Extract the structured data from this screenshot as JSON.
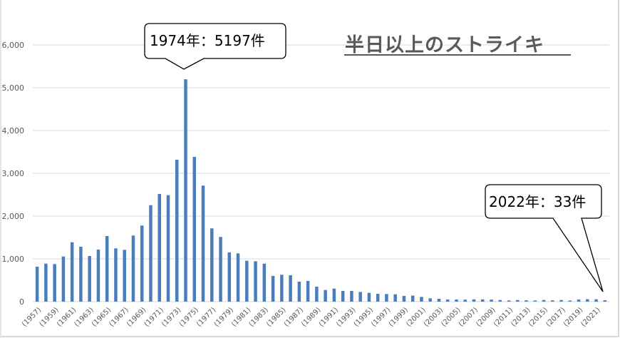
{
  "chart_data": {
    "type": "bar",
    "title": "半日以上のストライキ",
    "xlabel": "",
    "ylabel": "",
    "ylim": [
      0,
      6000
    ],
    "yticks": [
      "0",
      "1,000",
      "2,000",
      "3,000",
      "4,000",
      "5,000",
      "6,000"
    ],
    "grid": true,
    "legend": "none",
    "bar_color": "#4a7ebb",
    "categories": [
      1957,
      1958,
      1959,
      1960,
      1961,
      1962,
      1963,
      1964,
      1965,
      1966,
      1967,
      1968,
      1969,
      1970,
      1971,
      1972,
      1973,
      1974,
      1975,
      1976,
      1977,
      1978,
      1979,
      1980,
      1981,
      1982,
      1983,
      1984,
      1985,
      1986,
      1987,
      1988,
      1989,
      1990,
      1991,
      1992,
      1993,
      1994,
      1995,
      1996,
      1997,
      1998,
      1999,
      2000,
      2001,
      2002,
      2003,
      2004,
      2005,
      2006,
      2007,
      2008,
      2009,
      2010,
      2011,
      2012,
      2013,
      2014,
      2015,
      2016,
      2017,
      2018,
      2019,
      2020,
      2021,
      2022
    ],
    "x_tick_labels": [
      "(1957)",
      "(1959)",
      "(1961)",
      "(1963)",
      "(1965)",
      "(1967)",
      "(1969)",
      "(1971)",
      "(1973)",
      "(1975)",
      "(1977)",
      "(1979)",
      "(1981)",
      "(1983)",
      "(1985)",
      "(1987)",
      "(1989)",
      "(1991)",
      "(1993)",
      "(1995)",
      "(1997)",
      "(1999)",
      "(2001)",
      "(2003)",
      "(2005)",
      "(2007)",
      "(2009)",
      "(2011)",
      "(2013)",
      "(2015)",
      "(2017)",
      "(2019)",
      "(2021)"
    ],
    "values": [
      817,
      888,
      878,
      1055,
      1388,
      1283,
      1067,
      1217,
      1533,
      1245,
      1212,
      1545,
      1778,
      2255,
      2517,
      2488,
      3317,
      5197,
      3383,
      2712,
      1712,
      1512,
      1150,
      1128,
      955,
      944,
      888,
      600,
      628,
      617,
      467,
      483,
      350,
      272,
      305,
      250,
      250,
      227,
      205,
      183,
      178,
      172,
      133,
      141,
      110,
      77,
      67,
      51,
      50,
      46,
      54,
      52,
      48,
      38,
      28,
      38,
      31,
      27,
      39,
      31,
      38,
      26,
      49,
      57,
      55,
      33
    ],
    "annotations": [
      {
        "text": "1974年：5197件",
        "x": 1974,
        "y": 5197
      },
      {
        "text": "2022年：33件",
        "x": 2022,
        "y": 33
      }
    ]
  },
  "title": "半日以上のストライキ",
  "callouts": {
    "peak": "1974年：5197件",
    "latest": "2022年：33件"
  }
}
